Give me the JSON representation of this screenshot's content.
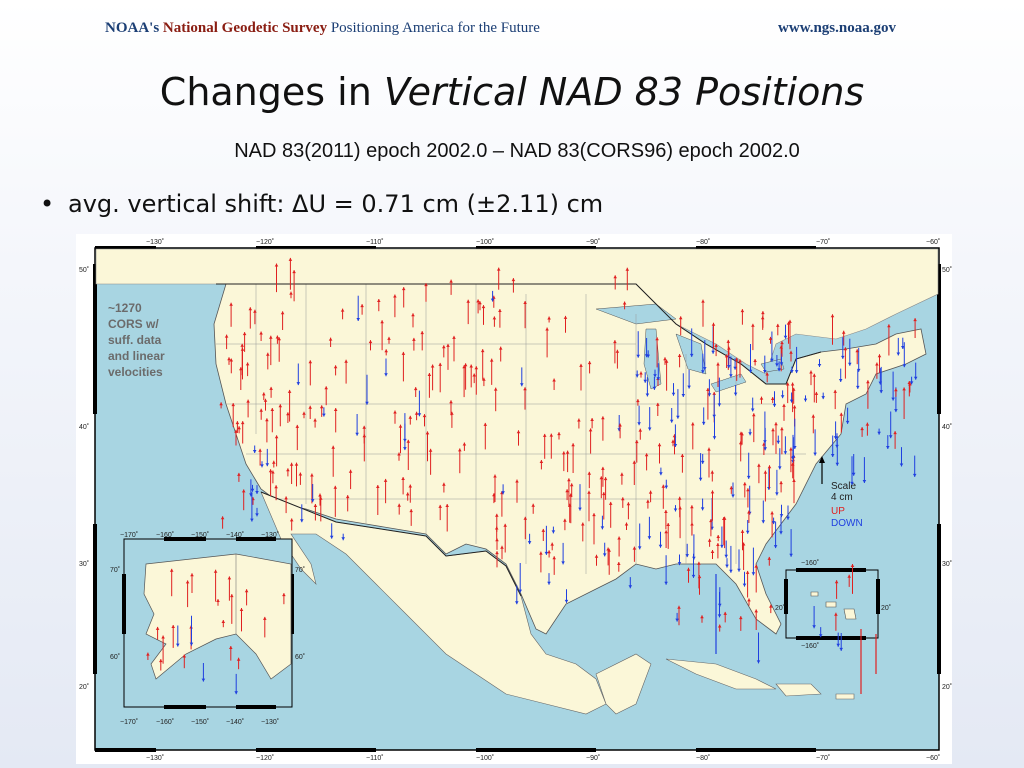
{
  "header": {
    "agency": "NOAA's",
    "survey": "National Geodetic Survey",
    "tagline": "Positioning America for the Future",
    "url": "www.ngs.noaa.gov"
  },
  "title": {
    "plain": "Changes in ",
    "italic": "Vertical NAD 83 Positions"
  },
  "subtitle": "NAD 83(2011) epoch 2002.0 – NAD 83(CORS96) epoch 2002.0",
  "bullet": {
    "text": "avg. vertical shift: ΔU = 0.71 cm (±2.11) cm"
  },
  "map": {
    "note": [
      "~1270",
      "CORS w/",
      "suff. data",
      "and linear",
      "velocities"
    ],
    "legend": {
      "scale_label": "Scale",
      "scale_value": "4 cm",
      "up_label": "UP",
      "down_label": "DOWN"
    },
    "colors": {
      "up": "#e02020",
      "down": "#1f3fe0",
      "land": "#fbf7d8",
      "water": "#a8d5e2"
    },
    "lon_labels": [
      "−130˚",
      "−120˚",
      "−110˚",
      "−100˚",
      "−90˚",
      "−80˚",
      "−70˚",
      "−60˚"
    ],
    "lat_labels": [
      "50˚",
      "40˚",
      "30˚",
      "20˚"
    ],
    "alaska_lon_labels": [
      "−170˚",
      "−160˚",
      "−150˚",
      "−140˚",
      "−130˚"
    ],
    "alaska_lat_labels": [
      "70˚",
      "60˚"
    ],
    "hawaii_lon_label": "−160˚",
    "hawaii_lat_label": "20˚"
  }
}
